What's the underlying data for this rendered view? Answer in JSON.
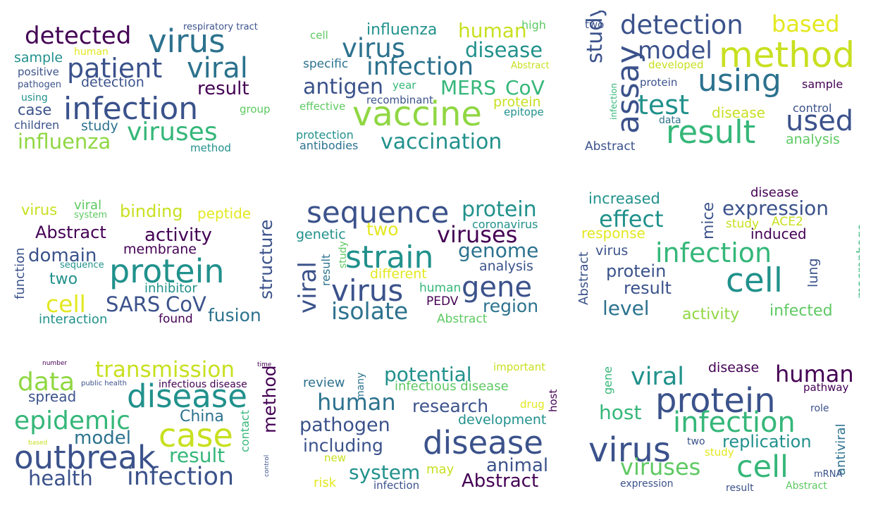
{
  "palette": {
    "c1": "#440154",
    "c2": "#3b528b",
    "c3": "#2c728e",
    "c4": "#21918c",
    "c5": "#35b779",
    "c6": "#5ec962",
    "c7": "#90d743",
    "c8": "#c8e020",
    "c9": "#e3e81f"
  },
  "panels": [
    {
      "words": [
        "respiratory tract",
        "detected",
        "virus",
        "sample",
        "human",
        "patient",
        "viral",
        "positive",
        "pathogen",
        "detection",
        "result",
        "using",
        "case",
        "infection",
        "group",
        "children",
        "study",
        "viruses",
        "influenza",
        "method"
      ]
    },
    {
      "words": [
        "cell",
        "influenza",
        "human",
        "high",
        "virus",
        "disease",
        "specific",
        "infection",
        "Abstract",
        "antigen",
        "year",
        "MERS",
        "CoV",
        "recombinant",
        "effective",
        "vaccine",
        "protein",
        "epitope",
        "protection",
        "antibodies",
        "vaccination"
      ]
    },
    {
      "words": [
        "two",
        "detection",
        "based",
        "study",
        "assay",
        "model",
        "method",
        "developed",
        "infection",
        "using",
        "protein",
        "sample",
        "test",
        "control",
        "disease",
        "data",
        "used",
        "result",
        "Abstract",
        "analysis"
      ]
    },
    {
      "words": [
        "virus",
        "viral",
        "system",
        "binding",
        "peptide",
        "structure",
        "Abstract",
        "activity",
        "membrane",
        "domain",
        "function",
        "sequence",
        "protein",
        "two",
        "inhibitor",
        "cell",
        "SARS",
        "CoV",
        "interaction",
        "found",
        "fusion"
      ]
    },
    {
      "words": [
        "sequence",
        "protein",
        "coronavirus",
        "two",
        "genetic",
        "viruses",
        "viral",
        "result",
        "study",
        "strain",
        "genome",
        "analysis",
        "different",
        "virus",
        "human",
        "gene",
        "region",
        "isolate",
        "PEDV",
        "Abstract"
      ]
    },
    {
      "words": [
        "disease",
        "increased",
        "expression",
        "effect",
        "mice",
        "study",
        "ACE2",
        "response",
        "induced",
        "Abstract",
        "infection",
        "macrophage",
        "virus",
        "protein",
        "lung",
        "result",
        "cell",
        "level",
        "activity",
        "infected"
      ]
    },
    {
      "words": [
        "number",
        "time",
        "data",
        "transmission",
        "public health",
        "infectious disease",
        "method",
        "spread",
        "disease",
        "China",
        "epidemic",
        "contact",
        "based",
        "model",
        "case",
        "result",
        "outbreak",
        "control",
        "health",
        "infection"
      ]
    },
    {
      "words": [
        "important",
        "review",
        "many",
        "potential",
        "infectious disease",
        "host",
        "human",
        "research",
        "drug",
        "pathogen",
        "development",
        "including",
        "disease",
        "new",
        "may",
        "animal",
        "system",
        "risk",
        "infection",
        "Abstract"
      ]
    },
    {
      "words": [
        "gene",
        "viral",
        "disease",
        "human",
        "pathway",
        "protein",
        "host",
        "role",
        "infection",
        "antiviral",
        "virus",
        "two",
        "replication",
        "study",
        "viruses",
        "cell",
        "mRNA",
        "expression",
        "result",
        "Abstract"
      ]
    }
  ]
}
